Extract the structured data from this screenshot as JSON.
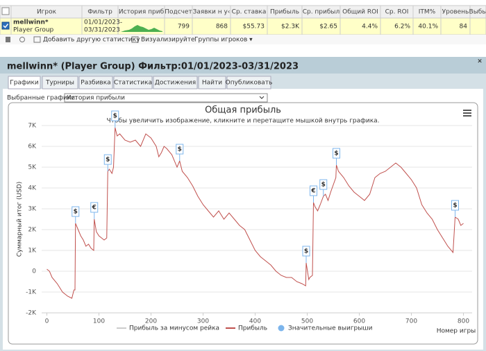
{
  "table": {
    "headers": [
      "Игрок",
      "Фильтр",
      "История приб",
      "Подсчет",
      "Заявки н у‹",
      "Ср. ставка",
      "Прибыль",
      "Ср. прибыл",
      "Общий ROI",
      "Ср. ROI",
      "ITM%",
      "Уровень",
      "Выбы"
    ],
    "row": {
      "player": "mellwinn*",
      "group": "Player Group",
      "filter_from": "01/01/2023-",
      "filter_to": "03/31/2023",
      "cells": [
        "799",
        "868",
        "$55.73",
        "$2.3K",
        "$2.65",
        "4.4%",
        "6.2%",
        "40.1%",
        "84"
      ]
    }
  },
  "toolbar": [
    "Добавить другую статистику",
    "Визуализируйте",
    "Группы игроков ▾"
  ],
  "panel": {
    "title": "mellwinn* (Player Group) Фильтр:01/01/2023-03/31/2023",
    "close": "×",
    "tabs": [
      "Графики",
      "Турниры",
      "Разбивка",
      "Статистика",
      "Достижения",
      "Найти",
      "Опубликовать"
    ],
    "select_label": "Выбранные графики:",
    "select_value": "История прибыли"
  },
  "chart_data": {
    "type": "line",
    "title": "Общая прибыль",
    "subtitle": "Чтобы увеличить изображение, кликните и перетащите мышкой внутрь графика.",
    "ylabel": "Суммарный итог (USD)",
    "xlabel": "Номер игры",
    "xlim": [
      -10,
      810
    ],
    "xticks": [
      0,
      100,
      200,
      300,
      400,
      500,
      600,
      700,
      800
    ],
    "ylim": [
      -2000,
      7000
    ],
    "yticks": [
      {
        "value": -2000,
        "label": "-2K"
      },
      {
        "value": -1000,
        "label": "-1K"
      },
      0,
      {
        "value": 1000,
        "label": "1K"
      },
      {
        "value": 2000,
        "label": "2K"
      },
      {
        "value": 3000,
        "label": "3K"
      },
      {
        "value": 4000,
        "label": "4K"
      },
      {
        "value": 5000,
        "label": "5K"
      },
      {
        "value": 6000,
        "label": "6K"
      },
      {
        "value": 7000,
        "label": "7K"
      }
    ],
    "grid": true,
    "hidden_series": [
      {
        "name": "Прибыль за минусом рейка",
        "color": "#cccccc"
      }
    ],
    "series": [
      {
        "name": "Прибыль",
        "color": "#c0504d",
        "x": [
          0,
          5,
          10,
          20,
          30,
          40,
          48,
          52,
          54,
          55,
          60,
          65,
          70,
          75,
          80,
          85,
          90,
          91,
          95,
          100,
          105,
          110,
          115,
          117,
          120,
          125,
          128,
          131,
          135,
          140,
          150,
          160,
          170,
          180,
          190,
          200,
          210,
          215,
          220,
          225,
          230,
          240,
          250,
          255,
          260,
          270,
          280,
          290,
          300,
          310,
          320,
          330,
          340,
          350,
          360,
          370,
          380,
          390,
          400,
          410,
          420,
          430,
          440,
          450,
          460,
          470,
          480,
          490,
          497,
          498,
          503,
          505,
          510,
          512,
          515,
          520,
          525,
          531,
          535,
          540,
          545,
          555,
          556,
          560,
          570,
          580,
          590,
          600,
          610,
          620,
          630,
          640,
          650,
          660,
          670,
          680,
          690,
          700,
          710,
          720,
          730,
          740,
          750,
          760,
          770,
          780,
          784,
          790,
          795,
          800
        ],
        "values": [
          100,
          0,
          -300,
          -600,
          -1000,
          -1200,
          -1300,
          -900,
          -900,
          2300,
          2000,
          1700,
          1500,
          1200,
          1300,
          1100,
          1000,
          2500,
          1900,
          1700,
          1600,
          1500,
          1600,
          4800,
          4900,
          4700,
          5000,
          6900,
          6500,
          6600,
          6300,
          6200,
          6300,
          6000,
          6600,
          6400,
          6000,
          5500,
          5700,
          6000,
          5900,
          5600,
          5000,
          5300,
          4800,
          4500,
          4100,
          3600,
          3200,
          2900,
          2600,
          2900,
          2500,
          2800,
          2500,
          2200,
          2000,
          1500,
          1000,
          700,
          500,
          300,
          0,
          -200,
          -300,
          -300,
          -500,
          -600,
          -700,
          400,
          -400,
          -300,
          -200,
          3300,
          3100,
          2900,
          3200,
          3600,
          3700,
          3400,
          3800,
          4500,
          5100,
          4800,
          4500,
          4100,
          3800,
          3600,
          3400,
          3700,
          4500,
          4700,
          4800,
          5000,
          5200,
          5000,
          4700,
          4400,
          4000,
          3200,
          2800,
          2500,
          2000,
          1600,
          1200,
          900,
          2600,
          2500,
          2200,
          2300
        ]
      }
    ],
    "markers": {
      "name": "Значительные выигрыши",
      "color": "#7cb5ec",
      "points": [
        {
          "x": 55,
          "y": 2300,
          "label": "$"
        },
        {
          "x": 91,
          "y": 2500,
          "label": "€"
        },
        {
          "x": 117,
          "y": 4800,
          "label": "$"
        },
        {
          "x": 131,
          "y": 6900,
          "label": "$"
        },
        {
          "x": 255,
          "y": 5300,
          "label": "$"
        },
        {
          "x": 498,
          "y": 400,
          "label": "$"
        },
        {
          "x": 512,
          "y": 3300,
          "label": "€"
        },
        {
          "x": 531,
          "y": 3600,
          "label": "$"
        },
        {
          "x": 556,
          "y": 5100,
          "label": "$"
        },
        {
          "x": 784,
          "y": 2600,
          "label": "$"
        }
      ]
    }
  }
}
